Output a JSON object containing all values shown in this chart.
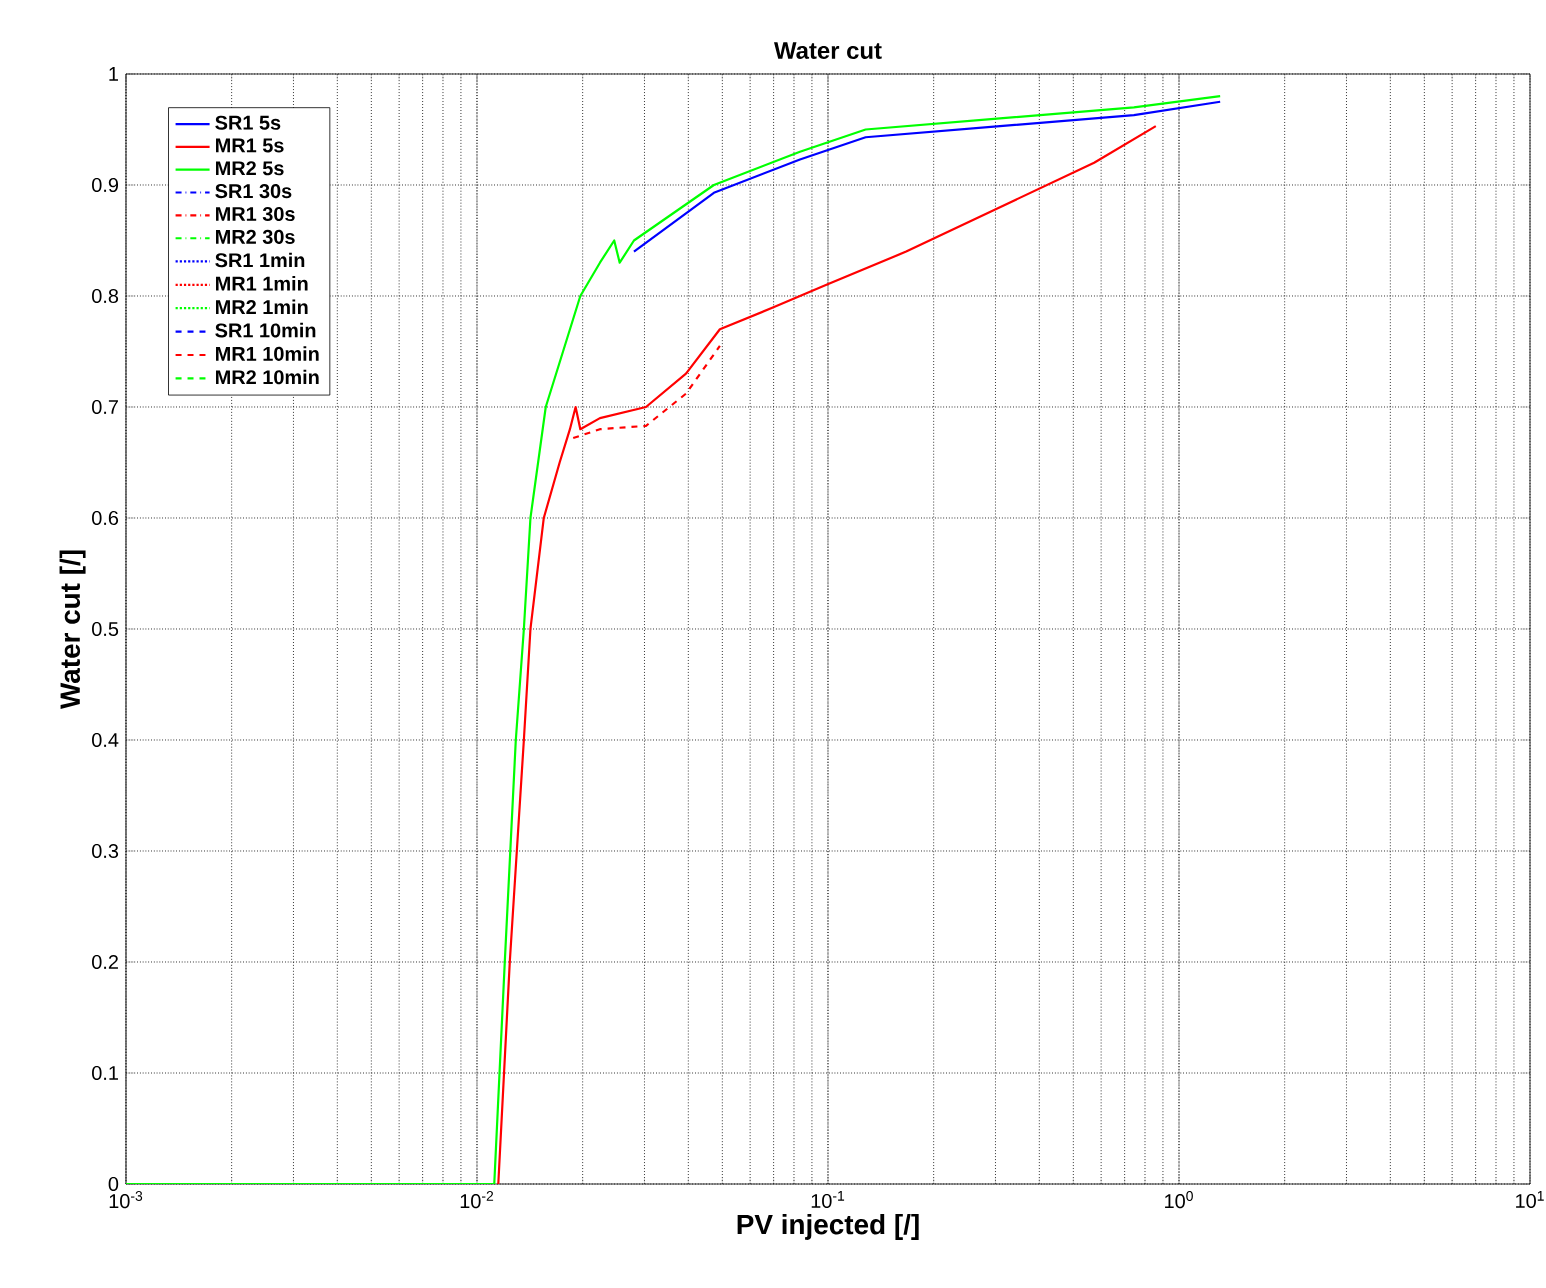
{
  "chart_data": {
    "type": "line",
    "title": "Water cut",
    "xlabel": "PV injected [/]",
    "ylabel": "Water cut [/]",
    "log": "x",
    "grid": true,
    "legend": "top left",
    "xlim": [
      0.001,
      10
    ],
    "ylim": [
      0,
      1
    ],
    "xticks": [
      {
        "value": 0.001,
        "label": "10$^{-3}$"
      },
      {
        "value": 0.01,
        "label": "10$^{-2}$"
      },
      {
        "value": 0.1,
        "label": "10$^{-1}$"
      },
      {
        "value": 1,
        "label": "10$^{0}$"
      },
      {
        "value": 10,
        "label": "10$^{1}$"
      }
    ],
    "yticks": [
      0,
      0.1,
      0.2,
      0.3,
      0.4,
      0.5,
      0.6,
      0.7,
      0.8,
      0.9,
      1
    ],
    "series": [
      {
        "name": "SR1 5s",
        "color": "#0000ff",
        "line_style": "solid",
        "x": [
          0.028,
          0.0473,
          0.0832,
          0.128,
          0.309,
          0.744,
          1.31
        ],
        "values": [
          0.84,
          0.893,
          0.923,
          0.943,
          0.953,
          0.963,
          0.975
        ]
      },
      {
        "name": "MR1 5s",
        "color": "#ff0000",
        "line_style": "solid",
        "x": [
          0.0115,
          0.0124,
          0.0136,
          0.0142,
          0.0155,
          0.0172,
          0.0184,
          0.0191,
          0.0197,
          0.0224,
          0.0303,
          0.0394,
          0.0492,
          0.0702,
          0.0986,
          0.167,
          0.309,
          0.573,
          0.859
        ],
        "values": [
          0,
          0.2,
          0.4,
          0.5,
          0.6,
          0.65,
          0.68,
          0.7,
          0.68,
          0.69,
          0.7,
          0.73,
          0.77,
          0.79,
          0.81,
          0.84,
          0.88,
          0.92,
          0.953
        ]
      },
      {
        "name": "MR2 5s",
        "color": "#00ff00",
        "line_style": "solid",
        "x": [
          0.001,
          0.0112,
          0.012,
          0.0129,
          0.0136,
          0.0142,
          0.0157,
          0.0197,
          0.0224,
          0.0246,
          0.0255,
          0.028,
          0.0473,
          0.0832,
          0.128,
          0.309,
          0.744,
          1.31
        ],
        "values": [
          0,
          0,
          0.2,
          0.4,
          0.5,
          0.6,
          0.7,
          0.8,
          0.83,
          0.85,
          0.83,
          0.85,
          0.9,
          0.93,
          0.95,
          0.96,
          0.97,
          0.98
        ]
      },
      {
        "name": "SR1 30s",
        "color": "#0000ff",
        "line_style": "dashdot"
      },
      {
        "name": "MR1 30s",
        "color": "#ff0000",
        "line_style": "dashdot"
      },
      {
        "name": "MR2 30s",
        "color": "#00ff00",
        "line_style": "dashdot"
      },
      {
        "name": "SR1 1min",
        "color": "#0000ff",
        "line_style": "dotted"
      },
      {
        "name": "MR1 1min",
        "color": "#ff0000",
        "line_style": "dotted"
      },
      {
        "name": "MR2 1min",
        "color": "#00ff00",
        "line_style": "dotted"
      },
      {
        "name": "SR1 10min",
        "color": "#0000ff",
        "line_style": "dashed"
      },
      {
        "name": "MR1 10min",
        "color": "#ff0000",
        "line_style": "dashed",
        "x": [
          0.0188,
          0.0224,
          0.0303,
          0.0394,
          0.0492
        ],
        "values": [
          0.672,
          0.68,
          0.683,
          0.712,
          0.755
        ]
      },
      {
        "name": "MR2 10min",
        "color": "#00ff00",
        "line_style": "dashed"
      }
    ]
  }
}
